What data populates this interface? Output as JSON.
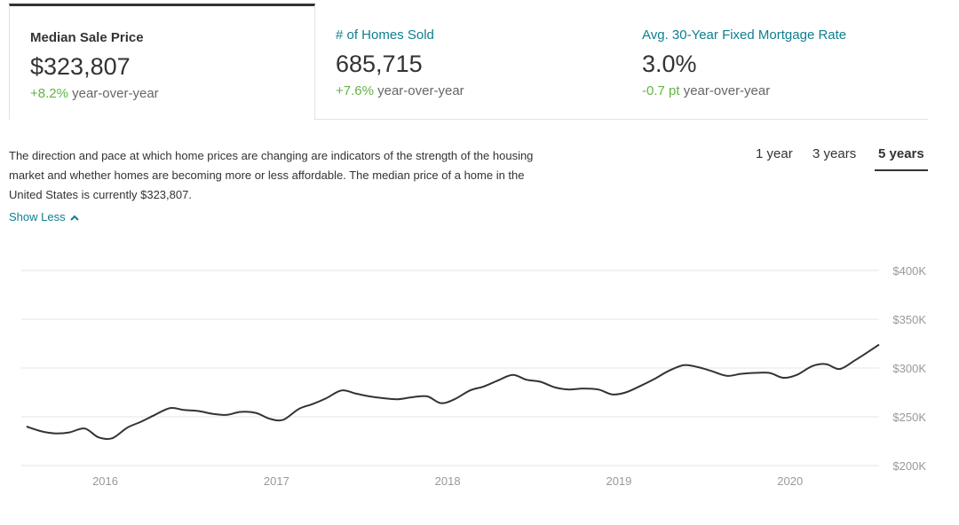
{
  "tabs": [
    {
      "title": "Median Sale Price",
      "value": "$323,807",
      "delta": "+8.2%",
      "suffix": "year-over-year",
      "active": true
    },
    {
      "title": "# of Homes Sold",
      "value": "685,715",
      "delta": "+7.6%",
      "suffix": "year-over-year",
      "active": false
    },
    {
      "title": "Avg. 30-Year Fixed Mortgage Rate",
      "value": "3.0%",
      "delta": "-0.7 pt",
      "suffix": "year-over-year",
      "active": false
    }
  ],
  "description": "The direction and pace at which home prices are changing are indicators of the strength of the housing market and whether homes are becoming more or less affordable. The median price of a home in the United States is currently $323,807.",
  "show_less_label": "Show Less",
  "ranges": [
    {
      "label": "1 year",
      "active": false
    },
    {
      "label": "3 years",
      "active": false
    },
    {
      "label": "5 years",
      "active": true
    }
  ],
  "colors": {
    "accent": "#0d7f8e",
    "positive": "#62b445",
    "line": "#333333",
    "grid": "#e6e6e6"
  },
  "icons": {
    "show_less": "chevron-up-icon"
  },
  "chart_data": {
    "type": "line",
    "title": "",
    "xlabel": "",
    "ylabel": "",
    "x_ticks": [
      "2016",
      "2017",
      "2018",
      "2019",
      "2020"
    ],
    "y_ticks": [
      "$400K",
      "$350K",
      "$300K",
      "$250K",
      "$200K"
    ],
    "y_tick_values": [
      400000,
      350000,
      300000,
      250000,
      200000
    ],
    "xlim": [
      2015.56,
      2020.56
    ],
    "ylim": [
      200000,
      400000
    ],
    "grid": true,
    "series": [
      {
        "name": "",
        "x": [
          2015.58,
          2015.67,
          2015.75,
          2015.83,
          2015.92,
          2016.0,
          2016.08,
          2016.17,
          2016.25,
          2016.33,
          2016.42,
          2016.5,
          2016.58,
          2016.67,
          2016.75,
          2016.83,
          2016.92,
          2017.0,
          2017.08,
          2017.17,
          2017.25,
          2017.33,
          2017.42,
          2017.5,
          2017.58,
          2017.67,
          2017.75,
          2017.83,
          2017.92,
          2018.0,
          2018.08,
          2018.17,
          2018.25,
          2018.33,
          2018.42,
          2018.5,
          2018.58,
          2018.67,
          2018.75,
          2018.83,
          2018.92,
          2019.0,
          2019.08,
          2019.17,
          2019.25,
          2019.33,
          2019.42,
          2019.5,
          2019.58,
          2019.67,
          2019.75,
          2019.83,
          2019.92,
          2020.0,
          2020.08,
          2020.17,
          2020.25,
          2020.33,
          2020.42,
          2020.5,
          2020.56
        ],
        "values": [
          240000,
          235000,
          233000,
          234000,
          238000,
          229000,
          228000,
          239000,
          245000,
          252000,
          259000,
          257000,
          256000,
          253000,
          252000,
          255000,
          254000,
          248000,
          247000,
          258000,
          263000,
          269000,
          277000,
          274000,
          271000,
          269000,
          268000,
          270000,
          271000,
          264000,
          268000,
          277000,
          281000,
          287000,
          293000,
          288000,
          286000,
          280000,
          278000,
          279000,
          278000,
          273000,
          275000,
          282000,
          289000,
          297000,
          303000,
          301000,
          297000,
          292000,
          294000,
          295000,
          295000,
          290000,
          293000,
          302000,
          304000,
          299000,
          308000,
          317000,
          324000
        ]
      }
    ]
  }
}
